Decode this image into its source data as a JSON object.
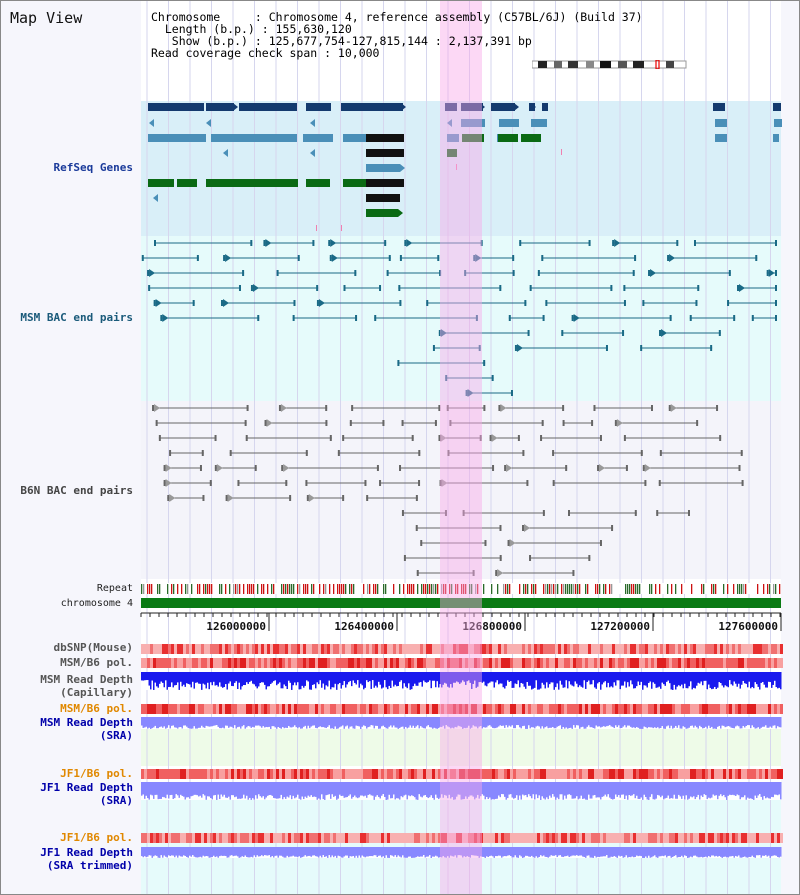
{
  "title": "Map View",
  "header": {
    "chromosome": "Chromosome     : Chromosome 4, reference assembly (C57BL/6J) (Build 37)",
    "length": "  Length (b.p.) : 155,630,120",
    "show": "   Show (b.p.) : 125,677,754-127,815,144 : 2,137,391 bp",
    "coverage": "Read coverage check span : 10,000"
  },
  "tracks": {
    "refseq": "RefSeq Genes",
    "msm_bac": "MSM BAC end pairs",
    "b6n_bac": "B6N BAC end pairs",
    "repeat": "Repeat",
    "chromosome": "chromosome 4",
    "dbsnp": "dbSNP(Mouse)",
    "msm_b6_pol": "MSM/B6 pol.",
    "msm_depth_cap_1": "MSM Read Depth",
    "msm_depth_cap_2": "(Capillary)",
    "msm_b6_pol_2": "MSM/B6 pol.",
    "msm_depth_sra_1": "MSM Read Depth",
    "msm_depth_sra_2": "(SRA)",
    "jf1_b6_pol": "JF1/B6 pol.",
    "jf1_depth_sra_1": "JF1 Read Depth",
    "jf1_depth_sra_2": "(SRA)",
    "jf1_b6_pol_2": "JF1/B6 pol.",
    "jf1_depth_trim_1": "JF1 Read Depth",
    "jf1_depth_trim_2": "(SRA trimmed)"
  },
  "axis": {
    "tick_labels": [
      "126000000",
      "126400000",
      "126800000",
      "127200000",
      "127600000"
    ]
  },
  "colors": {
    "refseq_bg": "#d9eff8",
    "msm_bg": "#e6fbfb",
    "b6n_bg": "#f4f4fa",
    "highlight": "#f6b8ec",
    "gene_navy": "#143a6e",
    "gene_blue": "#4a8fb8",
    "gene_green": "#0a6a14",
    "bac_teal": "#1a6a86",
    "bac_gray": "#666666",
    "chrom_green": "#0a7a14",
    "depth_blue": "#1a1aee",
    "depth_light": "#8888ff"
  }
}
